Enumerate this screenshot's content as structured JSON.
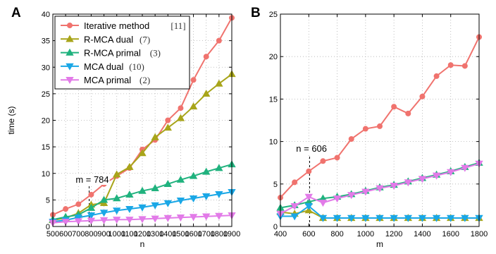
{
  "chart_data": [
    {
      "type": "line",
      "panel_label": "A",
      "xlabel": "n",
      "ylabel": "time (s)",
      "xlim": [
        500,
        1900
      ],
      "ylim": [
        0,
        40
      ],
      "xticks": [
        500,
        600,
        700,
        800,
        900,
        1000,
        1100,
        1200,
        1300,
        1400,
        1500,
        1600,
        1700,
        1800,
        1900
      ],
      "yticks": [
        0,
        5,
        10,
        15,
        20,
        25,
        30,
        35,
        40
      ],
      "grid": true,
      "legend_position": "top-left",
      "x": [
        500,
        600,
        700,
        800,
        900,
        1000,
        1100,
        1200,
        1300,
        1400,
        1500,
        1600,
        1700,
        1800,
        1900
      ],
      "series": [
        {
          "name": "Iterative method",
          "ref": "[11]",
          "color": "#f0736e",
          "marker": "circle",
          "values": [
            2.2,
            3.3,
            4.2,
            6.0,
            8.0,
            9.5,
            11.0,
            14.5,
            16.3,
            20.0,
            22.3,
            27.6,
            32.0,
            35.0,
            39.3
          ]
        },
        {
          "name": "R-MCA dual",
          "ref": "(7)",
          "color": "#a8a51a",
          "marker": "triangle-up",
          "values": [
            1.2,
            1.6,
            2.5,
            4.1,
            4.4,
            9.8,
            11.2,
            13.8,
            16.8,
            18.6,
            20.4,
            22.6,
            25.0,
            26.9,
            28.7
          ]
        },
        {
          "name": "R-MCA primal",
          "ref": "(3)",
          "color": "#20b27e",
          "marker": "triangle-up",
          "values": [
            1.3,
            1.8,
            2.2,
            3.5,
            5.0,
            5.3,
            6.0,
            6.7,
            7.2,
            8.0,
            8.8,
            9.5,
            10.3,
            11.0,
            11.7
          ]
        },
        {
          "name": "MCA dual",
          "ref": "(10)",
          "color": "#1aa7e6",
          "marker": "triangle-down",
          "values": [
            0.9,
            1.2,
            1.7,
            2.1,
            2.6,
            3.0,
            3.3,
            3.6,
            4.0,
            4.4,
            4.9,
            5.3,
            5.7,
            6.1,
            6.5
          ]
        },
        {
          "name": "MCA primal",
          "ref": "(2)",
          "color": "#e27be8",
          "marker": "triangle-down",
          "values": [
            0.7,
            0.9,
            1.0,
            1.1,
            1.2,
            1.3,
            1.3,
            1.4,
            1.5,
            1.6,
            1.7,
            1.8,
            1.9,
            2.0,
            2.1
          ]
        }
      ],
      "annotation": {
        "text": "m = 784",
        "x": 784
      }
    },
    {
      "type": "line",
      "panel_label": "B",
      "xlabel": "m",
      "ylabel": "",
      "xlim": [
        400,
        1800
      ],
      "ylim": [
        0,
        25
      ],
      "xticks": [
        400,
        600,
        800,
        1000,
        1200,
        1400,
        1600,
        1800
      ],
      "yticks": [
        0,
        5,
        10,
        15,
        20,
        25
      ],
      "grid": true,
      "x": [
        400,
        500,
        600,
        700,
        800,
        900,
        1000,
        1100,
        1200,
        1300,
        1400,
        1500,
        1600,
        1700,
        1800
      ],
      "series": [
        {
          "color": "#f0736e",
          "marker": "circle",
          "values": [
            3.4,
            5.2,
            6.5,
            7.7,
            8.1,
            10.3,
            11.5,
            11.8,
            14.1,
            13.3,
            15.3,
            17.7,
            19.0,
            18.9,
            22.3
          ]
        },
        {
          "color": "#a8a51a",
          "marker": "triangle-up",
          "values": [
            1.7,
            1.5,
            1.9,
            1.0,
            1.0,
            1.0,
            1.0,
            1.0,
            1.0,
            1.0,
            1.0,
            1.0,
            1.0,
            1.0,
            1.0
          ]
        },
        {
          "color": "#20b27e",
          "marker": "triangle-up",
          "values": [
            2.2,
            2.5,
            2.9,
            3.3,
            3.5,
            3.8,
            4.2,
            4.6,
            4.9,
            5.3,
            5.7,
            6.1,
            6.5,
            7.0,
            7.5
          ]
        },
        {
          "color": "#1aa7e6",
          "marker": "triangle-down",
          "values": [
            1.2,
            1.2,
            2.4,
            1.0,
            1.0,
            1.0,
            1.0,
            1.0,
            1.0,
            1.0,
            1.0,
            1.0,
            1.0,
            1.0,
            1.0
          ]
        },
        {
          "color": "#e27be8",
          "marker": "triangle-down",
          "values": [
            1.5,
            2.4,
            3.5,
            2.8,
            3.3,
            3.7,
            4.1,
            4.5,
            4.8,
            5.2,
            5.6,
            6.0,
            6.4,
            6.9,
            7.4
          ]
        }
      ],
      "annotation": {
        "text": "n = 606",
        "x": 606
      }
    }
  ]
}
